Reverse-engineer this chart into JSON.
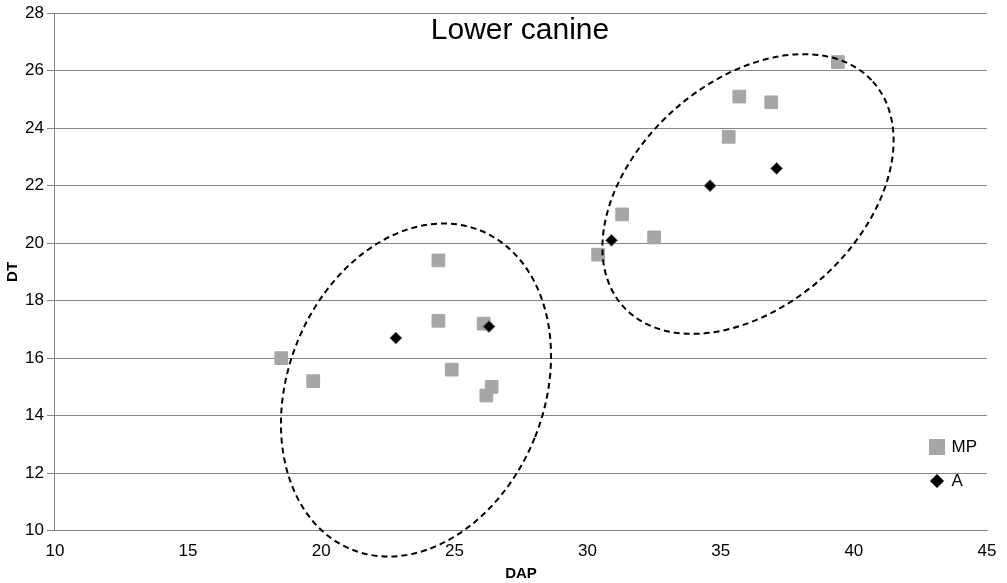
{
  "chart_data": {
    "type": "scatter",
    "title": "Lower canine",
    "xlabel": "DAP",
    "ylabel": "DT",
    "xlim": [
      10,
      45
    ],
    "xticks": [
      10,
      15,
      20,
      25,
      30,
      35,
      40,
      45
    ],
    "ylim": [
      10,
      28
    ],
    "yticks": [
      10,
      12,
      14,
      16,
      18,
      20,
      22,
      24,
      26,
      28
    ],
    "grid": "y",
    "legend": "bottom right",
    "series": [
      {
        "name": "MP",
        "color": "#a6a6a6",
        "marker": "square",
        "x": [
          18.5,
          19.7,
          24.4,
          24.4,
          24.9,
          26.1,
          26.2,
          26.4,
          30.4,
          31.3,
          32.5,
          35.3,
          35.7,
          36.9,
          39.4
        ],
        "values": [
          16.0,
          15.2,
          19.4,
          17.3,
          15.6,
          17.2,
          14.7,
          15.0,
          19.6,
          21.0,
          20.2,
          23.7,
          25.1,
          24.9,
          26.3
        ]
      },
      {
        "name": "A",
        "color": "#000000",
        "marker": "diamond",
        "x": [
          22.8,
          26.3,
          30.9,
          34.6,
          37.1
        ],
        "values": [
          16.7,
          17.1,
          20.1,
          22.0,
          22.6
        ]
      }
    ]
  }
}
